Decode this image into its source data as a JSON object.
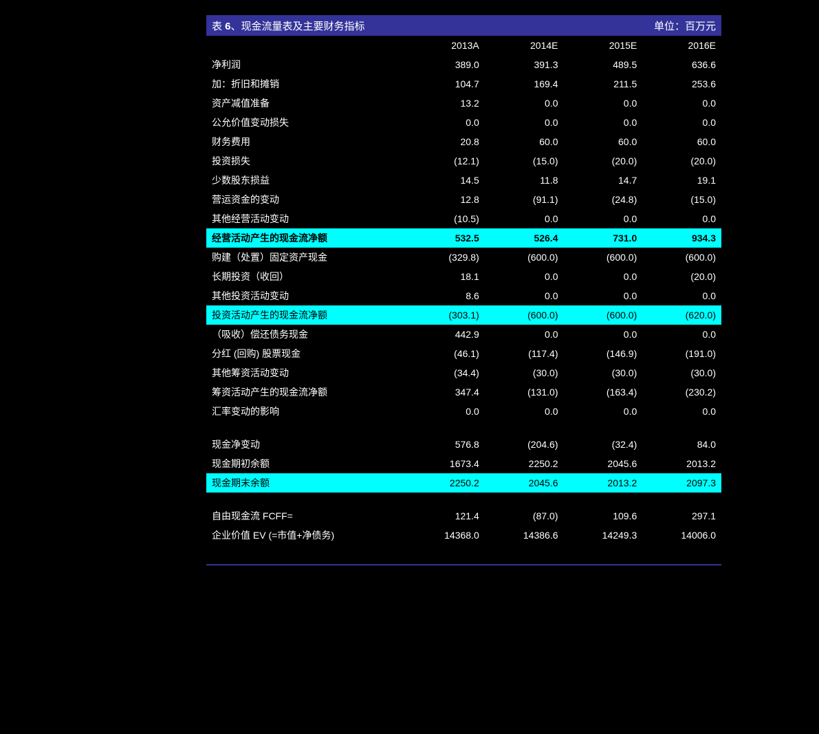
{
  "header": {
    "title_prefix": "表 ",
    "title_num": "6",
    "title_suffix": "、现金流量表及主要财务指标",
    "unit": "单位：百万元"
  },
  "colors": {
    "header_bg": "#333399",
    "header_text": "#ffffff",
    "highlight_bg": "#00FFFF",
    "highlight_text": "#000000",
    "body_bg": "#000000",
    "body_text": "#ffffff"
  },
  "columns": [
    "2013A",
    "2014E",
    "2015E",
    "2016E"
  ],
  "rows": [
    {
      "label": "净利润",
      "vals": [
        "389.0",
        "391.3",
        "489.5",
        "636.6"
      ],
      "type": "black"
    },
    {
      "label": "加：折旧和摊销",
      "vals": [
        "104.7",
        "169.4",
        "211.5",
        "253.6"
      ],
      "type": "black"
    },
    {
      "label": "   资产减值准备",
      "vals": [
        "13.2",
        "0.0",
        "0.0",
        "0.0"
      ],
      "type": "black"
    },
    {
      "label": "   公允价值变动损失",
      "vals": [
        "0.0",
        "0.0",
        "0.0",
        "0.0"
      ],
      "type": "black"
    },
    {
      "label": "   财务费用",
      "vals": [
        "20.8",
        "60.0",
        "60.0",
        "60.0"
      ],
      "type": "black"
    },
    {
      "label": "   投资损失",
      "vals": [
        "(12.1)",
        "(15.0)",
        "(20.0)",
        "(20.0)"
      ],
      "type": "black"
    },
    {
      "label": "   少数股东损益",
      "vals": [
        "14.5",
        "11.8",
        "14.7",
        "19.1"
      ],
      "type": "black"
    },
    {
      "label": "   营运资金的变动",
      "vals": [
        "12.8",
        "(91.1)",
        "(24.8)",
        "(15.0)"
      ],
      "type": "black"
    },
    {
      "label": "   其他经营活动变动",
      "vals": [
        "(10.5)",
        "0.0",
        "0.0",
        "0.0"
      ],
      "type": "black"
    },
    {
      "label": "经营活动产生的现金流净额",
      "vals": [
        "532.5",
        "526.4",
        "731.0",
        "934.3"
      ],
      "type": "highlight-bold"
    },
    {
      "label": "购建（处置）固定资产现金",
      "vals": [
        "(329.8)",
        "(600.0)",
        "(600.0)",
        "(600.0)"
      ],
      "type": "black"
    },
    {
      "label": "长期投资（收回）",
      "vals": [
        "18.1",
        "0.0",
        "0.0",
        "(20.0)"
      ],
      "type": "black"
    },
    {
      "label": "其他投资活动变动",
      "vals": [
        "8.6",
        "0.0",
        "0.0",
        "0.0"
      ],
      "type": "black"
    },
    {
      "label": "投资活动产生的现金流净额",
      "vals": [
        "(303.1)",
        "(600.0)",
        "(600.0)",
        "(620.0)"
      ],
      "type": "highlight"
    },
    {
      "label": "（吸收）偿还债务现金",
      "vals": [
        "442.9",
        "0.0",
        "0.0",
        "0.0"
      ],
      "type": "black"
    },
    {
      "label": "分红 (回购) 股票现金",
      "vals": [
        "(46.1)",
        "(117.4)",
        "(146.9)",
        "(191.0)"
      ],
      "type": "black"
    },
    {
      "label": "其他筹资活动变动",
      "vals": [
        "(34.4)",
        "(30.0)",
        "(30.0)",
        "(30.0)"
      ],
      "type": "black"
    },
    {
      "label": "筹资活动产生的现金流净额",
      "vals": [
        "347.4",
        "(131.0)",
        "(163.4)",
        "(230.2)"
      ],
      "type": "black"
    },
    {
      "label": "汇率变动的影响",
      "vals": [
        "0.0",
        "0.0",
        "0.0",
        "0.0"
      ],
      "type": "black"
    },
    {
      "label": "",
      "vals": [
        "",
        "",
        "",
        ""
      ],
      "type": "spacer"
    },
    {
      "label": "现金净变动",
      "vals": [
        "576.8",
        "(204.6)",
        "(32.4)",
        "84.0"
      ],
      "type": "black"
    },
    {
      "label": "现金期初余额",
      "vals": [
        "1673.4",
        "2250.2",
        "2045.6",
        "2013.2"
      ],
      "type": "black"
    },
    {
      "label": "现金期末余额",
      "vals": [
        "2250.2",
        "2045.6",
        "2013.2",
        "2097.3"
      ],
      "type": "highlight"
    },
    {
      "label": "",
      "vals": [
        "",
        "",
        "",
        ""
      ],
      "type": "spacer"
    },
    {
      "label": "自由现金流 FCFF=",
      "vals": [
        "121.4",
        "(87.0)",
        "109.6",
        "297.1"
      ],
      "type": "black"
    },
    {
      "label": "企业价值 EV (=市值+净债务)",
      "vals": [
        "14368.0",
        "14386.6",
        "14249.3",
        "14006.0"
      ],
      "type": "black"
    },
    {
      "label": "",
      "vals": [
        "",
        "",
        "",
        ""
      ],
      "type": "spacer"
    }
  ]
}
